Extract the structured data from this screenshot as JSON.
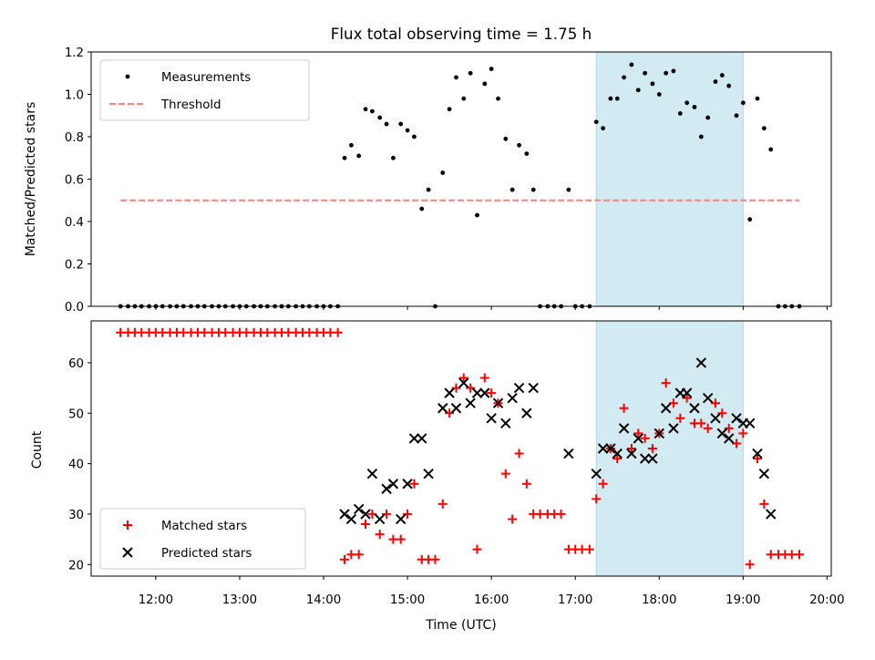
{
  "figure": {
    "title": "Flux total observing time = 1.75 h",
    "xlabel": "Time (UTC)",
    "xticks": [
      "12:00",
      "13:00",
      "14:00",
      "15:00",
      "16:00",
      "17:00",
      "18:00",
      "19:00",
      "20:00"
    ]
  },
  "chart_data": [
    {
      "type": "scatter",
      "panel": "top",
      "ylabel": "Matched/Predicted stars",
      "ylim": [
        0,
        1.2
      ],
      "yticks": [
        "0.0",
        "0.2",
        "0.4",
        "0.6",
        "0.8",
        "1.0",
        "1.2"
      ],
      "xlim": [
        11.23,
        20.05
      ],
      "shaded_x": [
        17.25,
        19.0
      ],
      "shade_color": "#add8e6",
      "legend": [
        "Measurements",
        "Threshold"
      ],
      "legend_position": "top-left",
      "threshold": {
        "name": "Threshold",
        "value": 0.5,
        "x": [
          11.58,
          19.67
        ],
        "color": "#ff7f7f"
      },
      "series": [
        {
          "name": "Measurements",
          "color": "#000000",
          "x": [
            11.58,
            11.67,
            11.75,
            11.83,
            11.92,
            12.0,
            12.08,
            12.17,
            12.25,
            12.33,
            12.42,
            12.5,
            12.58,
            12.67,
            12.75,
            12.83,
            12.92,
            13.0,
            13.08,
            13.17,
            13.25,
            13.33,
            13.42,
            13.5,
            13.58,
            13.67,
            13.75,
            13.83,
            13.92,
            14.0,
            14.08,
            14.17,
            14.25,
            14.33,
            14.42,
            14.5,
            14.58,
            14.67,
            14.75,
            14.83,
            14.92,
            15.0,
            15.08,
            15.17,
            15.25,
            15.33,
            15.42,
            15.5,
            15.58,
            15.67,
            15.75,
            15.83,
            15.92,
            16.0,
            16.08,
            16.17,
            16.25,
            16.33,
            16.42,
            16.5,
            16.58,
            16.67,
            16.75,
            16.83,
            16.92,
            17.0,
            17.08,
            17.17,
            17.25,
            17.33,
            17.42,
            17.5,
            17.58,
            17.67,
            17.75,
            17.83,
            17.92,
            18.0,
            18.08,
            18.17,
            18.25,
            18.33,
            18.42,
            18.5,
            18.58,
            18.67,
            18.75,
            18.83,
            18.92,
            19.0,
            19.08,
            19.17,
            19.25,
            19.33,
            19.42,
            19.5,
            19.58,
            19.67
          ],
          "y": [
            0,
            0,
            0,
            0,
            0,
            0,
            0,
            0,
            0,
            0,
            0,
            0,
            0,
            0,
            0,
            0,
            0,
            0,
            0,
            0,
            0,
            0,
            0,
            0,
            0,
            0,
            0,
            0,
            0,
            0,
            0,
            0,
            0.7,
            0.76,
            0.71,
            0.93,
            0.92,
            0.89,
            0.86,
            0.7,
            0.86,
            0.83,
            0.8,
            0.46,
            0.55,
            0,
            0.63,
            0.93,
            1.08,
            0.98,
            1.1,
            0.43,
            1.05,
            1.12,
            0.98,
            0.79,
            0.55,
            0.76,
            0.72,
            0.55,
            0,
            0,
            0,
            0,
            0.55,
            0,
            0,
            0,
            0.87,
            0.84,
            0.98,
            0.98,
            1.08,
            1.14,
            1.02,
            1.1,
            1.05,
            1.0,
            1.1,
            1.11,
            0.91,
            0.96,
            0.94,
            0.8,
            0.89,
            1.06,
            1.09,
            1.04,
            0.9,
            0.96,
            0.41,
            0.98,
            0.84,
            0.74,
            0,
            0,
            0,
            0
          ]
        }
      ]
    },
    {
      "type": "scatter",
      "panel": "bottom",
      "ylabel": "Count",
      "ylim": [
        17.7,
        68.3
      ],
      "yticks": [
        "20",
        "30",
        "40",
        "50",
        "60"
      ],
      "xlim": [
        11.23,
        20.05
      ],
      "shaded_x": [
        17.25,
        19.0
      ],
      "shade_color": "#add8e6",
      "legend": [
        "Matched stars",
        "Predicted stars"
      ],
      "legend_position": "bottom-left",
      "series": [
        {
          "name": "Matched stars",
          "marker": "plus",
          "color": "#ff0000",
          "x": [
            11.58,
            11.67,
            11.75,
            11.83,
            11.92,
            12.0,
            12.08,
            12.17,
            12.25,
            12.33,
            12.42,
            12.5,
            12.58,
            12.67,
            12.75,
            12.83,
            12.92,
            13.0,
            13.08,
            13.17,
            13.25,
            13.33,
            13.42,
            13.5,
            13.58,
            13.67,
            13.75,
            13.83,
            13.92,
            14.0,
            14.08,
            14.17,
            14.25,
            14.33,
            14.42,
            14.5,
            14.58,
            14.67,
            14.75,
            14.83,
            14.92,
            15.0,
            15.08,
            15.17,
            15.25,
            15.33,
            15.42,
            15.5,
            15.58,
            15.67,
            15.75,
            15.83,
            15.92,
            16.0,
            16.08,
            16.17,
            16.25,
            16.33,
            16.42,
            16.5,
            16.58,
            16.67,
            16.75,
            16.83,
            16.92,
            17.0,
            17.08,
            17.17,
            17.25,
            17.33,
            17.42,
            17.5,
            17.58,
            17.67,
            17.75,
            17.83,
            17.92,
            18.0,
            18.08,
            18.17,
            18.25,
            18.33,
            18.42,
            18.5,
            18.58,
            18.67,
            18.75,
            18.83,
            18.92,
            19.0,
            19.08,
            19.17,
            19.25,
            19.33,
            19.42,
            19.5,
            19.58,
            19.67
          ],
          "y": [
            66,
            66,
            66,
            66,
            66,
            66,
            66,
            66,
            66,
            66,
            66,
            66,
            66,
            66,
            66,
            66,
            66,
            66,
            66,
            66,
            66,
            66,
            66,
            66,
            66,
            66,
            66,
            66,
            66,
            66,
            66,
            66,
            21,
            22,
            22,
            28,
            30,
            26,
            30,
            25,
            25,
            30,
            36,
            21,
            21,
            21,
            32,
            50,
            55,
            57,
            55,
            23,
            57,
            54,
            52,
            38,
            29,
            42,
            36,
            30,
            30,
            30,
            30,
            30,
            23,
            23,
            23,
            23,
            33,
            36,
            43,
            41,
            51,
            43,
            46,
            45,
            43,
            46,
            56,
            52,
            49,
            53,
            48,
            48,
            47,
            52,
            50,
            47,
            44,
            46,
            20,
            41,
            32,
            22,
            22,
            22,
            22,
            22
          ]
        },
        {
          "name": "Predicted stars",
          "marker": "x",
          "color": "#000000",
          "x": [
            14.25,
            14.33,
            14.42,
            14.5,
            14.58,
            14.67,
            14.75,
            14.83,
            14.92,
            15.0,
            15.08,
            15.17,
            15.25,
            15.42,
            15.5,
            15.58,
            15.67,
            15.75,
            15.83,
            15.92,
            16.0,
            16.08,
            16.17,
            16.25,
            16.33,
            16.42,
            16.5,
            16.92,
            17.25,
            17.33,
            17.42,
            17.5,
            17.58,
            17.67,
            17.75,
            17.83,
            17.92,
            18.0,
            18.08,
            18.17,
            18.25,
            18.33,
            18.42,
            18.5,
            18.58,
            18.67,
            18.75,
            18.83,
            18.92,
            19.0,
            19.08,
            19.17,
            19.25,
            19.33
          ],
          "y": [
            30,
            29,
            31,
            30,
            38,
            29,
            35,
            36,
            29,
            36,
            45,
            45,
            38,
            51,
            54,
            51,
            56,
            52,
            54,
            54,
            49,
            52,
            48,
            53,
            55,
            50,
            55,
            42,
            38,
            43,
            43,
            42,
            47,
            42,
            45,
            41,
            41,
            46,
            51,
            47,
            54,
            54,
            51,
            60,
            53,
            49,
            46,
            45,
            49,
            48,
            48,
            42,
            38,
            30
          ]
        }
      ]
    }
  ]
}
